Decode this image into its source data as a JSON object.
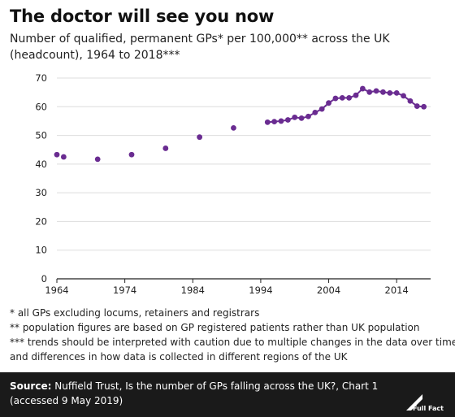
{
  "header": {
    "title": "The doctor will see you now",
    "subtitle": "Number of qualified, permanent GPs* per 100,000** across the UK (headcount), 1964 to 2018***"
  },
  "notes": [
    "* all GPs excluding locums, retainers and registrars",
    "** population figures are based on GP registered patients rather than UK population",
    "*** trends should be interpreted with caution due to multiple changes in the data over time",
    "and differences in how data is collected in different regions of the UK"
  ],
  "footer": {
    "source_label": "Source:",
    "source_text": "Nuffield Trust, Is the number of GPs falling across the UK?, Chart 1 (accessed 9 May 2019)",
    "logo_text": "Full Fact"
  },
  "colors": {
    "series": "#6a2c91",
    "grid": "#dddddd",
    "axis": "#222222",
    "footer_bg": "#1a1a1a"
  },
  "chart_data": {
    "type": "scatter",
    "title": "The doctor will see you now",
    "xlabel": "",
    "ylabel": "",
    "xlim": [
      1964,
      2019
    ],
    "ylim": [
      0,
      70
    ],
    "xticks": [
      1964,
      1974,
      1984,
      1994,
      2004,
      2014
    ],
    "yticks": [
      0,
      10,
      20,
      30,
      40,
      50,
      60,
      70
    ],
    "grid": "horizontal",
    "legend": "none",
    "series": [
      {
        "name": "",
        "connect_from": 1995,
        "points": [
          [
            1964,
            43.3
          ],
          [
            1965,
            42.5
          ],
          [
            1970,
            41.7
          ],
          [
            1975,
            43.3
          ],
          [
            1980,
            45.5
          ],
          [
            1985,
            49.4
          ],
          [
            1990,
            52.6
          ],
          [
            1995,
            54.6
          ],
          [
            1996,
            54.8
          ],
          [
            1997,
            55.0
          ],
          [
            1998,
            55.4
          ],
          [
            1999,
            56.3
          ],
          [
            2000,
            56.0
          ],
          [
            2001,
            56.6
          ],
          [
            2002,
            58.0
          ],
          [
            2003,
            59.2
          ],
          [
            2004,
            61.3
          ],
          [
            2005,
            62.9
          ],
          [
            2006,
            63.1
          ],
          [
            2007,
            63.1
          ],
          [
            2008,
            64.0
          ],
          [
            2009,
            66.3
          ],
          [
            2010,
            65.1
          ],
          [
            2011,
            65.5
          ],
          [
            2012,
            65.1
          ],
          [
            2013,
            64.8
          ],
          [
            2014,
            64.8
          ],
          [
            2015,
            63.8
          ],
          [
            2016,
            62.0
          ],
          [
            2017,
            60.2
          ],
          [
            2018,
            60.0
          ]
        ]
      }
    ]
  }
}
